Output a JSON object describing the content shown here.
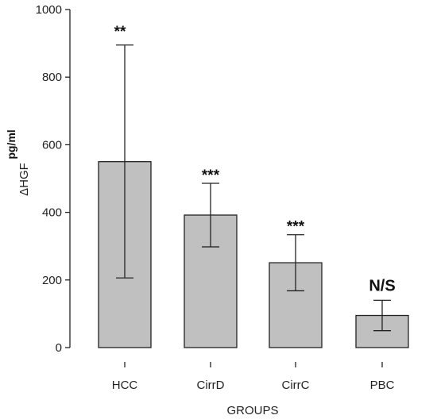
{
  "chart_data": {
    "type": "bar",
    "categories": [
      "HCC",
      "CirrD",
      "CirrC",
      "PBC"
    ],
    "values": [
      550,
      392,
      251,
      95
    ],
    "error_low": [
      206,
      298,
      168,
      50
    ],
    "error_high": [
      895,
      486,
      334,
      140
    ],
    "significance": [
      "**",
      "***",
      "***",
      "N/S"
    ],
    "title": "",
    "xlabel": "GROUPS",
    "ylabel": "ΔHGF",
    "yunit": "pg/ml",
    "ylim": [
      0,
      1000
    ],
    "yticks": [
      0,
      200,
      400,
      600,
      800,
      1000
    ],
    "grid": false,
    "bar_color": "#c0c0c0"
  }
}
